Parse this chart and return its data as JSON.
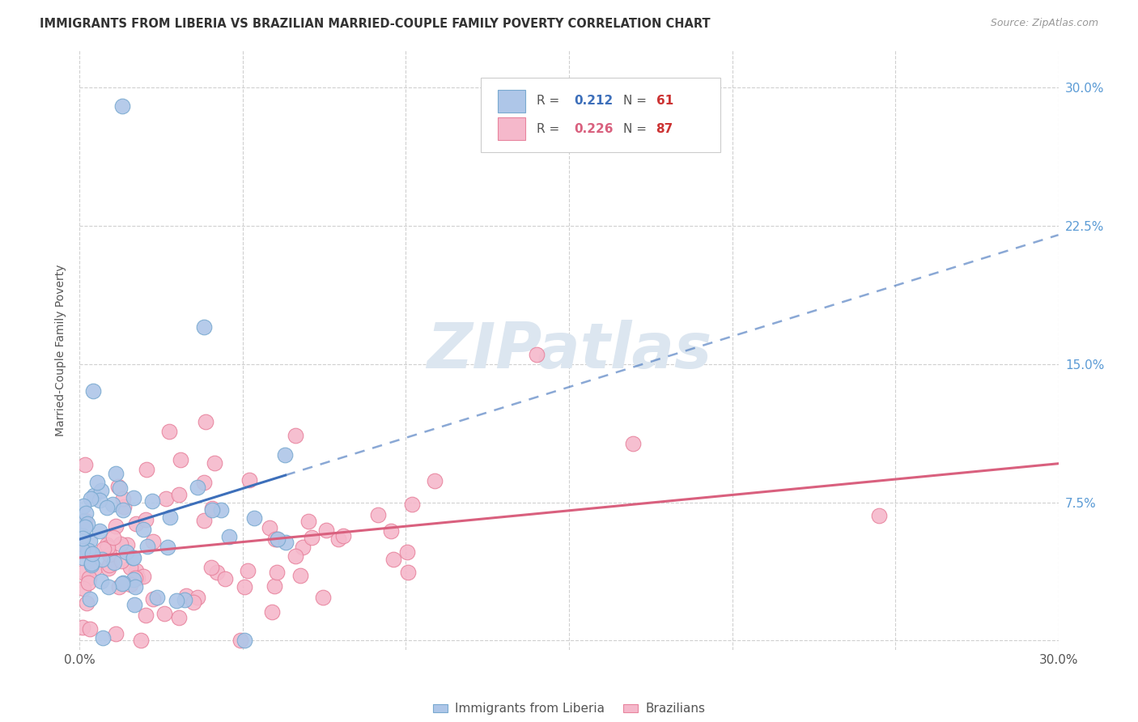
{
  "title": "IMMIGRANTS FROM LIBERIA VS BRAZILIAN MARRIED-COUPLE FAMILY POVERTY CORRELATION CHART",
  "source": "Source: ZipAtlas.com",
  "ylabel": "Married-Couple Family Poverty",
  "xlim": [
    0.0,
    0.3
  ],
  "ylim": [
    -0.005,
    0.32
  ],
  "liberia_color": "#aec6e8",
  "liberia_edge": "#7aaad0",
  "brazil_color": "#f5b8cb",
  "brazil_edge": "#e8849e",
  "line_blue": "#3d6fba",
  "line_pink": "#d9607e",
  "watermark_color": "#dce6f0",
  "r1": 0.212,
  "n1": 61,
  "r2": 0.226,
  "n2": 87
}
